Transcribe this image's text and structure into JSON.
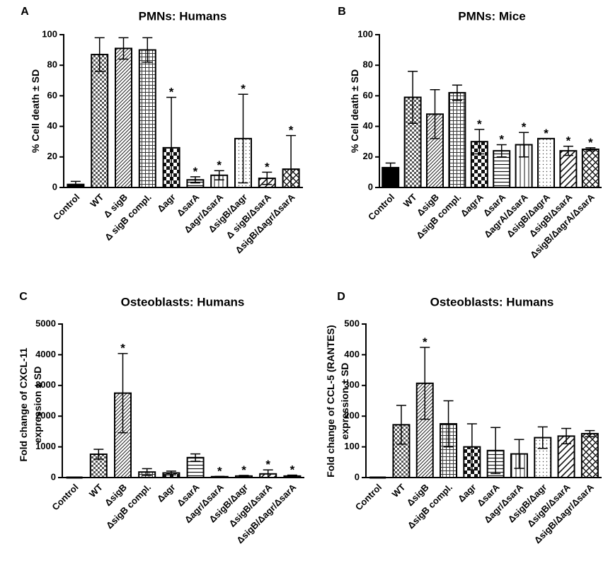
{
  "chart_data": [
    {
      "type": "bar",
      "panel": "A",
      "title": "PMNs: Humans",
      "ylabel": "% Cell death ± SD",
      "ylim": [
        0,
        100
      ],
      "yticks": [
        "0",
        "20",
        "40",
        "60",
        "80",
        "100"
      ],
      "categories": [
        "Control",
        "WT",
        "Δ sigB",
        "Δ sigB compl.",
        "Δagr",
        "ΔsarA",
        "Δagr/ΔsarA",
        "ΔsigB/Δagr",
        "Δ sigB/ΔsarA",
        "ΔsigB/Δagr/ΔsarA"
      ],
      "values": [
        2,
        87,
        91,
        90,
        26,
        5,
        8,
        32,
        6,
        12
      ],
      "errors": [
        2,
        11,
        7,
        8,
        33,
        2,
        3,
        29,
        4,
        22
      ],
      "significant": [
        false,
        false,
        false,
        false,
        true,
        true,
        true,
        true,
        true,
        true
      ],
      "star_label": "*",
      "patterns": [
        "solid",
        "checker",
        "diag",
        "grid",
        "bigchecker",
        "hlines",
        "vlines",
        "dots",
        "diagwide",
        "crosshatch"
      ]
    },
    {
      "type": "bar",
      "panel": "B",
      "title": "PMNs: Mice",
      "ylabel": "% Cell death ± SD",
      "ylim": [
        0,
        100
      ],
      "yticks": [
        "0",
        "20",
        "40",
        "60",
        "80",
        "100"
      ],
      "categories": [
        "Control",
        "WT",
        "ΔsigB",
        "ΔsigB compl.",
        "ΔagrA",
        "ΔsarA",
        "ΔagrA/ΔsarA",
        "ΔsigB/ΔagrA",
        "ΔsigB/ΔsarA",
        "ΔsigB/ΔagrA/ΔsarA"
      ],
      "values": [
        13,
        59,
        48,
        62,
        30,
        24,
        28,
        32,
        24,
        25
      ],
      "errors": [
        3,
        17,
        16,
        5,
        8,
        4,
        8,
        0,
        3,
        1
      ],
      "significant": [
        false,
        false,
        false,
        false,
        true,
        true,
        true,
        true,
        true,
        true
      ],
      "star_label": "*",
      "patterns": [
        "solid",
        "checker",
        "diag",
        "grid",
        "bigchecker",
        "hlines",
        "vlines",
        "dots",
        "diagwide",
        "crosshatch"
      ]
    },
    {
      "type": "bar",
      "panel": "C",
      "title": "Osteoblasts: Humans",
      "ylabel": "Fold change of CXCL-11 expression ± SD",
      "ylabel_lines": [
        "Fold change of CXCL-11",
        "expression ± SD"
      ],
      "ylim": [
        0,
        5000
      ],
      "yticks": [
        "0",
        "1000",
        "2000",
        "3000",
        "4000",
        "5000"
      ],
      "categories": [
        "Control",
        "WT",
        "ΔsigB",
        "ΔsigB compl.",
        "Δagr",
        "ΔsarA",
        "Δagr/ΔsarA",
        "ΔsigB/Δagr",
        "ΔsigB/ΔsarA",
        "ΔsigB/Δagr/ΔsarA"
      ],
      "values": [
        0,
        760,
        2750,
        180,
        150,
        650,
        30,
        50,
        120,
        50
      ],
      "errors": [
        0,
        160,
        1290,
        110,
        60,
        120,
        10,
        20,
        130,
        30
      ],
      "significant": [
        false,
        false,
        true,
        false,
        false,
        false,
        true,
        true,
        true,
        true
      ],
      "star_label": "*",
      "patterns": [
        "solid",
        "checker",
        "diag",
        "grid",
        "bigchecker",
        "hlines",
        "vlines",
        "dots",
        "diagwide",
        "crosshatch"
      ]
    },
    {
      "type": "bar",
      "panel": "D",
      "title": "Osteoblasts: Humans",
      "ylabel": "Fold change of CCL-5 (RANTES) expression ± SD",
      "ylabel_lines": [
        "Fold change of CCL-5 (RANTES)",
        "expression ± SD"
      ],
      "ylim": [
        0,
        500
      ],
      "yticks": [
        "0",
        "100",
        "200",
        "300",
        "400",
        "500"
      ],
      "categories": [
        "Control",
        "WT",
        "ΔsigB",
        "ΔsigB compl.",
        "Δagr",
        "ΔsarA",
        "Δagr/ΔsarA",
        "ΔsigB/Δagr",
        "ΔsigB/ΔsarA",
        "ΔsigB/Δagr/ΔsarA"
      ],
      "values": [
        0,
        172,
        307,
        175,
        100,
        88,
        77,
        130,
        135,
        143
      ],
      "errors": [
        0,
        63,
        117,
        75,
        75,
        75,
        47,
        35,
        25,
        10
      ],
      "significant": [
        false,
        false,
        true,
        false,
        false,
        false,
        false,
        false,
        false,
        false
      ],
      "star_label": "*",
      "patterns": [
        "solid",
        "checker",
        "diag",
        "grid",
        "bigchecker",
        "hlines",
        "vlines",
        "dots",
        "diagwide",
        "crosshatch"
      ]
    }
  ]
}
